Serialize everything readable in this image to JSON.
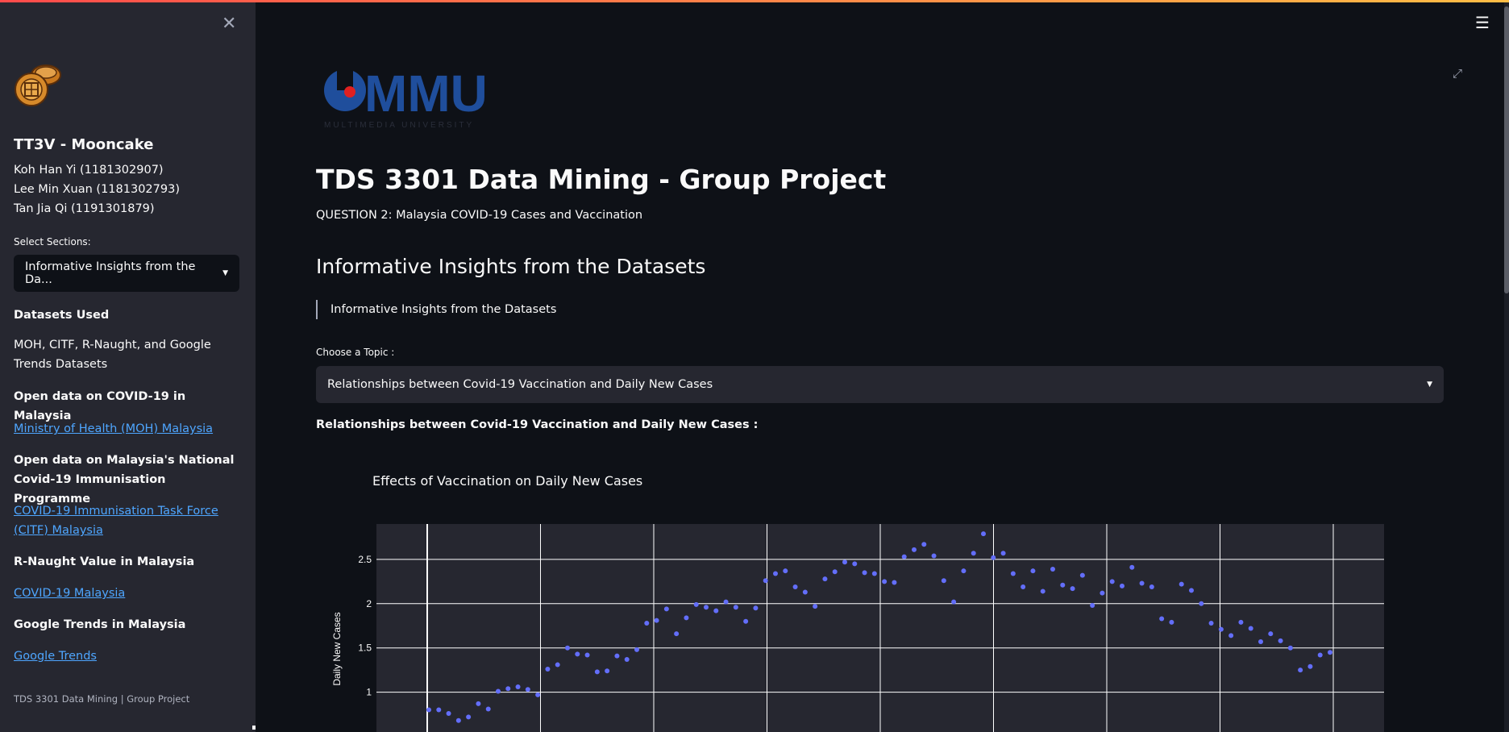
{
  "sidebar": {
    "team_name": "TT3V - Mooncake",
    "members": [
      "Koh Han Yi (1181302907)",
      "Lee Min Xuan (1181302793)",
      "Tan Jia Qi (1191301879)"
    ],
    "select_label": "Select Sections:",
    "select_value": "Informative Insights from the Da...",
    "datasets_heading": "Datasets Used",
    "datasets_text": "MOH, CITF, R-Naught, and Google Trends Datasets",
    "sources": [
      {
        "heading": "Open data on COVID-19 in Malaysia",
        "link": "Ministry of Health (MOH) Malaysia"
      },
      {
        "heading": "Open data on Malaysia's National Covid-19 Immunisation Programme",
        "link": "COVID-19 Immunisation Task Force (CITF) Malaysia"
      },
      {
        "heading": "R-Naught Value in Malaysia",
        "link": "COVID-19 Malaysia"
      },
      {
        "heading": "Google Trends in Malaysia",
        "link": "Google Trends"
      }
    ],
    "footer": "TDS 3301 Data Mining | Group Project"
  },
  "main": {
    "logo_text": "MMU",
    "logo_subtext": "MULTIMEDIA UNIVERSITY",
    "title": "TDS 3301 Data Mining - Group Project",
    "subtitle": "QUESTION 2: Malaysia COVID-19 Cases and Vaccination",
    "section_title": "Informative Insights from the Datasets",
    "blockquote": "Informative Insights from the Datasets",
    "topic_label": "Choose a Topic :",
    "topic_value": "Relationships between Covid-19 Vaccination and Daily New Cases",
    "relationship_heading": "Relationships between Covid-19 Vaccination and Daily New Cases :"
  },
  "colors": {
    "accent": "#ff4b4b",
    "marker": "#636efa",
    "link": "#4ea6ff",
    "plot_bg": "#262730"
  },
  "chart_data": {
    "type": "scatter",
    "title": "Effects of Vaccination on Daily New Cases",
    "ylabel": "Daily New Cases",
    "yticks": [
      "1",
      "1.5",
      "2",
      "2.5"
    ],
    "ylim": [
      0.55,
      2.9
    ],
    "y": [
      0.8,
      0.8,
      0.76,
      0.68,
      0.72,
      0.87,
      0.81,
      1.01,
      1.04,
      1.06,
      1.03,
      0.97,
      1.26,
      1.31,
      1.5,
      1.43,
      1.42,
      1.23,
      1.24,
      1.41,
      1.37,
      1.48,
      1.78,
      1.81,
      1.94,
      1.66,
      1.84,
      1.99,
      1.96,
      1.92,
      2.02,
      1.96,
      1.8,
      1.95,
      2.26,
      2.34,
      2.37,
      2.19,
      2.13,
      1.97,
      2.28,
      2.36,
      2.47,
      2.45,
      2.35,
      2.34,
      2.25,
      2.24,
      2.53,
      2.61,
      2.67,
      2.54,
      2.26,
      2.02,
      2.37,
      2.57,
      2.79,
      2.52,
      2.57,
      2.34,
      2.19,
      2.37,
      2.14,
      2.39,
      2.21,
      2.17,
      2.32,
      1.98,
      2.12,
      2.25,
      2.2,
      2.41,
      2.23,
      2.19,
      1.83,
      1.79,
      2.22,
      2.15,
      2.0,
      1.78,
      1.71,
      1.64,
      1.79,
      1.72,
      1.57,
      1.66,
      1.58,
      1.5,
      1.25,
      1.29,
      1.42,
      1.45
    ]
  }
}
